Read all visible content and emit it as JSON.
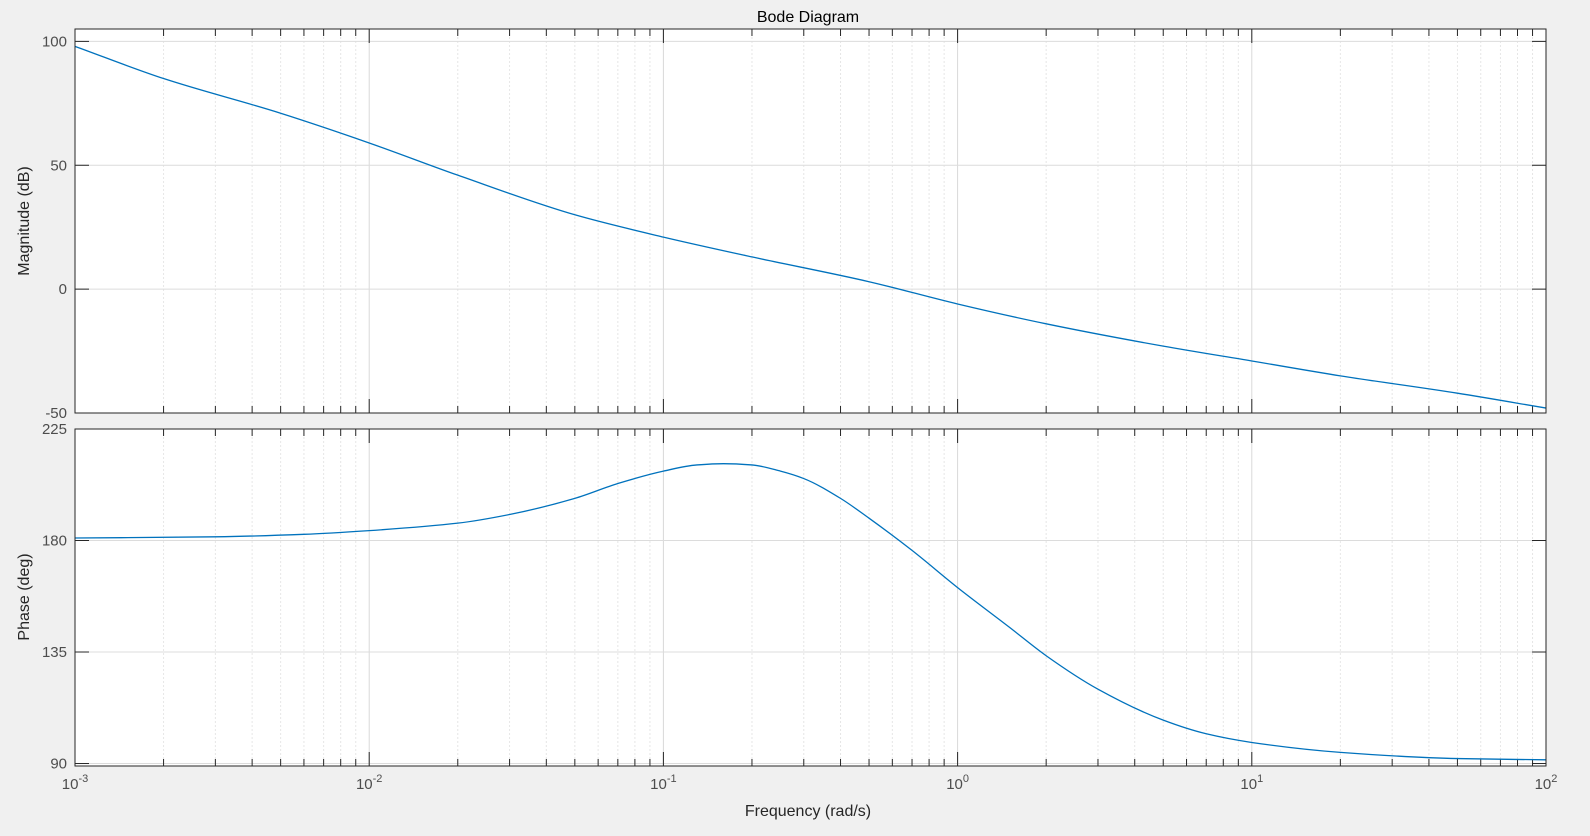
{
  "figure": {
    "title": "Bode Diagram",
    "xlabel": "Frequency  (rad/s)"
  },
  "colors": {
    "background": "#f0f0f0",
    "axes_bg": "#ffffff",
    "series": "#0072bd",
    "grid": "#dcdcdc",
    "axis": "#262626",
    "tick_text": "#4d4d4d"
  },
  "chart_data": [
    {
      "type": "line",
      "panel": "magnitude",
      "title": "Bode Diagram",
      "ylabel": "Magnitude (dB)",
      "xlabel": "",
      "xscale": "log",
      "xlim": [
        0.001,
        100
      ],
      "ylim": [
        -50,
        105
      ],
      "yticks": [
        -50,
        0,
        50,
        100
      ],
      "ytick_labels": [
        "-50",
        "0",
        "50",
        "100"
      ],
      "grid": true,
      "series": [
        {
          "x": [
            0.001,
            0.002,
            0.005,
            0.01,
            0.02,
            0.05,
            0.1,
            0.2,
            0.5,
            1,
            2,
            5,
            10,
            20,
            50,
            100
          ],
          "y": [
            98,
            85,
            71,
            59,
            46,
            30,
            21,
            13,
            3,
            -6,
            -14,
            -23,
            -29,
            -35,
            -42,
            -48
          ]
        }
      ]
    },
    {
      "type": "line",
      "panel": "phase",
      "ylabel": "Phase (deg)",
      "xlabel": "Frequency  (rad/s)",
      "xscale": "log",
      "xlim": [
        0.001,
        100
      ],
      "ylim": [
        89,
        225
      ],
      "yticks": [
        90,
        135,
        180,
        225
      ],
      "ytick_labels": [
        "90",
        "135",
        "180",
        "225"
      ],
      "xticks": [
        0.001,
        0.01,
        0.1,
        1,
        10,
        100
      ],
      "xtick_labels": [
        {
          "base": "10",
          "exp": "-3"
        },
        {
          "base": "10",
          "exp": "-2"
        },
        {
          "base": "10",
          "exp": "-1"
        },
        {
          "base": "10",
          "exp": "0"
        },
        {
          "base": "10",
          "exp": "1"
        },
        {
          "base": "10",
          "exp": "2"
        }
      ],
      "grid": true,
      "series": [
        {
          "x": [
            0.001,
            0.003,
            0.006,
            0.01,
            0.02,
            0.03,
            0.05,
            0.07,
            0.1,
            0.13,
            0.16,
            0.2,
            0.25,
            0.3,
            0.4,
            0.5,
            0.7,
            1,
            1.5,
            2,
            3,
            5,
            7,
            10,
            20,
            50,
            100
          ],
          "y": [
            181,
            181.5,
            182.5,
            184,
            187,
            190.5,
            197,
            203,
            208,
            210.5,
            211,
            210.5,
            208,
            205,
            197,
            189,
            176,
            161,
            145,
            133.5,
            120,
            107.5,
            102,
            98.5,
            94.5,
            92,
            91.5
          ]
        }
      ]
    }
  ]
}
